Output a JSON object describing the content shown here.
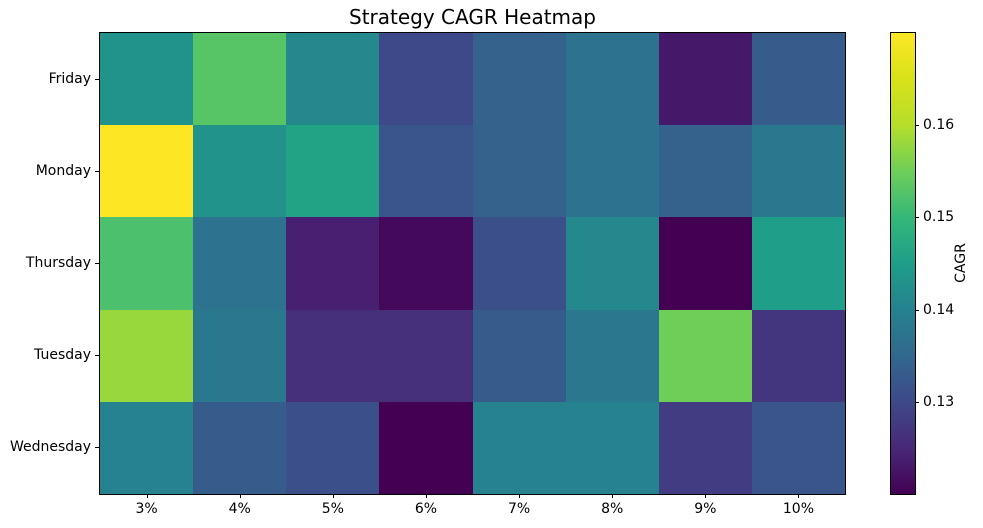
{
  "chart_data": {
    "type": "heatmap",
    "title": "Strategy CAGR Heatmap",
    "x_categories": [
      "3%",
      "4%",
      "5%",
      "6%",
      "7%",
      "8%",
      "9%",
      "10%"
    ],
    "y_categories": [
      "Friday",
      "Monday",
      "Thursday",
      "Tuesday",
      "Wednesday"
    ],
    "values": [
      [
        0.143,
        0.153,
        0.141,
        0.13,
        0.134,
        0.137,
        0.123,
        0.133
      ],
      [
        0.17,
        0.143,
        0.146,
        0.132,
        0.134,
        0.137,
        0.134,
        0.138
      ],
      [
        0.152,
        0.137,
        0.124,
        0.121,
        0.131,
        0.141,
        0.12,
        0.145
      ],
      [
        0.158,
        0.138,
        0.126,
        0.126,
        0.133,
        0.138,
        0.155,
        0.127
      ],
      [
        0.14,
        0.133,
        0.131,
        0.12,
        0.14,
        0.14,
        0.128,
        0.132
      ]
    ],
    "colormap": "viridis",
    "vmin": 0.12,
    "vmax": 0.17,
    "xlabel": "",
    "ylabel": "",
    "grid": false,
    "colorbar": {
      "label": "CAGR",
      "tick_labels": [
        "0.13",
        "0.14",
        "0.15",
        "0.16"
      ],
      "ticks": [
        0.13,
        0.14,
        0.15,
        0.16
      ]
    }
  }
}
